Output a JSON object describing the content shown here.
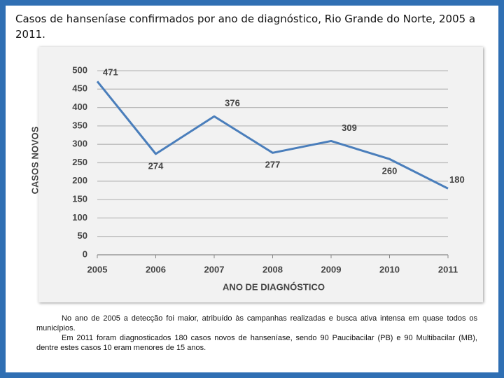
{
  "title": "Casos de hanseníase confirmados por ano de diagnóstico, Rio Grande do Norte, 2005 a 2011.",
  "chart_data": {
    "type": "line",
    "categories": [
      "2005",
      "2006",
      "2007",
      "2008",
      "2009",
      "2010",
      "2011"
    ],
    "series": [
      {
        "name": "Casos novos",
        "color": "#4a7ebb",
        "values": [
          471,
          274,
          376,
          277,
          309,
          260,
          180
        ]
      }
    ],
    "xlabel": "ANO DE DIAGNÓSTICO",
    "ylabel": "CASOS NOVOS",
    "ylim": [
      0,
      500
    ],
    "yticks": [
      0,
      50,
      100,
      150,
      200,
      250,
      300,
      350,
      400,
      450,
      500
    ],
    "grid": true
  },
  "notes": [
    "No ano de 2005 a detecção foi maior, atribuído às campanhas realizadas e busca ativa intensa em quase todos os municípios.",
    "Em 2011 foram diagnosticados 180 casos novos de hanseníase, sendo 90 Paucibacilar (PB) e 90 Multibacilar (MB), dentre estes casos 10 eram menores de 15 anos."
  ]
}
